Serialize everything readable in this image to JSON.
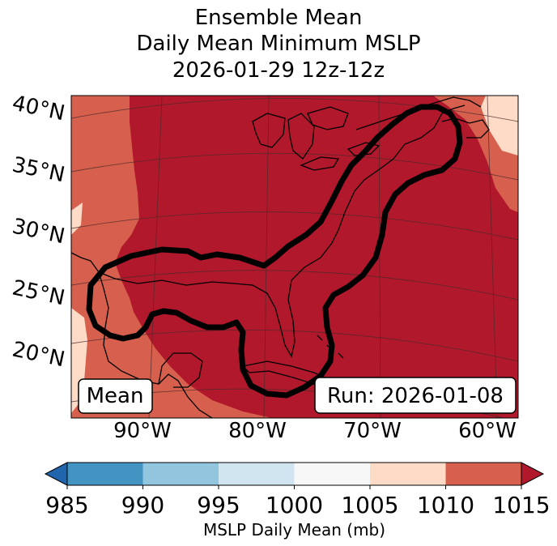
{
  "title": {
    "line1": "Ensemble Mean",
    "line2": "Daily Mean Minimum MSLP",
    "line3": "2026-01-29 12z-12z"
  },
  "map": {
    "latitude_labels": [
      "40°N",
      "35°N",
      "30°N",
      "25°N",
      "20°N"
    ],
    "longitude_labels": [
      "90°W",
      "80°W",
      "70°W",
      "60°W"
    ],
    "mean_label": "Mean",
    "run_label": "Run: 2026-01-08",
    "contour_description_color": "#000000",
    "fill_colors": {
      "1015_plus": "#b2182b",
      "1010_1015": "#d6604d",
      "1005_1010": "#fddbc7"
    }
  },
  "colorbar": {
    "ticks": [
      "985",
      "990",
      "995",
      "1000",
      "1005",
      "1010",
      "1015"
    ],
    "label": "MSLP Daily Mean (mb)",
    "colors": [
      "#2166ac",
      "#4393c3",
      "#92c5de",
      "#d1e5f0",
      "#f7f7f7",
      "#fddbc7",
      "#d6604d",
      "#b2182b"
    ]
  }
}
